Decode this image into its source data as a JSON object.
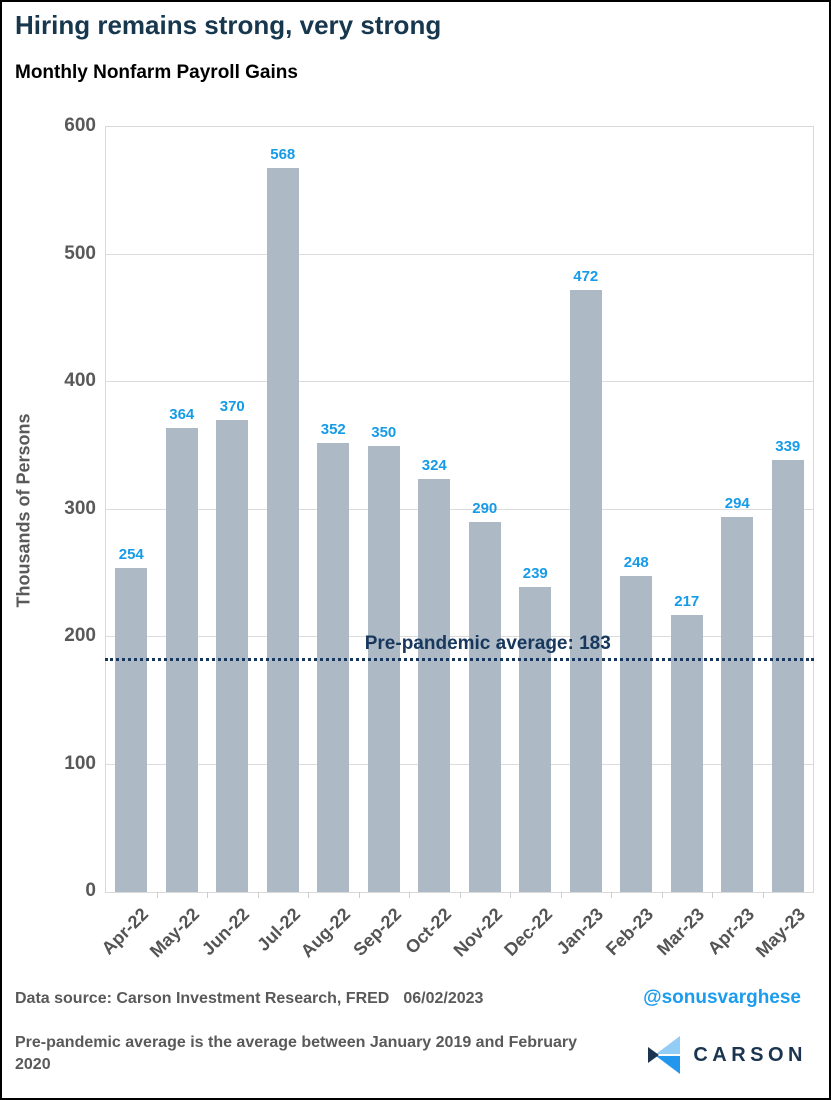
{
  "page": {
    "title": "Hiring remains strong, very strong",
    "subtitle": "Monthly Nonfarm Payroll Gains"
  },
  "chart_data": {
    "type": "bar",
    "title": "Monthly Nonfarm Payroll Gains",
    "categories": [
      "Apr-22",
      "May-22",
      "Jun-22",
      "Jul-22",
      "Aug-22",
      "Sep-22",
      "Oct-22",
      "Nov-22",
      "Dec-22",
      "Jan-23",
      "Feb-23",
      "Mar-23",
      "Apr-23",
      "May-23"
    ],
    "values": [
      254,
      364,
      370,
      568,
      352,
      350,
      324,
      290,
      239,
      472,
      248,
      217,
      294,
      339
    ],
    "xlabel": "",
    "ylabel": "Thousands of Persons",
    "ylim": [
      0,
      600
    ],
    "yticks": [
      0,
      100,
      200,
      300,
      400,
      500,
      600
    ],
    "grid": "horizontal",
    "legend": "none",
    "bar_color": "#adbac5",
    "value_label_color": "#169be8",
    "reference_line": {
      "value": 183,
      "label": "Pre-pandemic average: 183",
      "color": "#17375c",
      "style": "dotted"
    }
  },
  "footer": {
    "source_label": "Data source: Carson Investment Research, FRED",
    "date": "06/02/2023",
    "handle": "@sonusvarghese",
    "note": "Pre-pandemic average is the average between January 2019 and February 2020",
    "logo_text": "CARSON"
  },
  "colors": {
    "title_navy": "#17374f",
    "axis_gray": "#595959",
    "grid_gray": "#dcdcdc",
    "handle_blue": "#1b9cee",
    "logo_navy": "#1b3550",
    "logo_light_blue": "#93ccf5",
    "logo_bright_blue": "#2396ee"
  }
}
